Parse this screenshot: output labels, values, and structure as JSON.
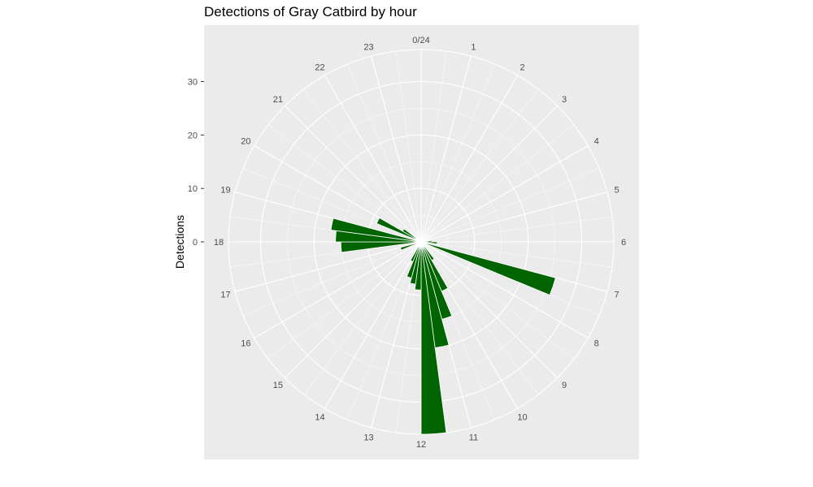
{
  "chart_data": {
    "type": "bar",
    "coord": "polar",
    "title": "Detections of Gray Catbird by hour",
    "xlabel": "",
    "ylabel": "Detections",
    "ylim": [
      0,
      36
    ],
    "y_ticks": [
      0,
      10,
      20,
      30
    ],
    "y_tick_labels": [
      "0",
      "10",
      "20",
      "30"
    ],
    "hour_labels": [
      "0/24",
      "1",
      "2",
      "3",
      "4",
      "5",
      "6",
      "7",
      "8",
      "9",
      "10",
      "11",
      "12",
      "13",
      "14",
      "15",
      "16",
      "17",
      "18",
      "19",
      "20",
      "21",
      "22",
      "23"
    ],
    "categories": [
      0,
      1,
      2,
      3,
      4,
      5,
      6,
      7,
      8,
      9,
      10,
      11,
      12,
      13,
      14,
      15,
      16,
      17,
      18,
      19,
      20,
      21,
      22,
      23
    ],
    "bars": [
      {
        "start": 11.5,
        "end": 12.0,
        "value": 36
      },
      {
        "start": 11.0,
        "end": 11.5,
        "value": 20
      },
      {
        "start": 10.5,
        "end": 11.0,
        "value": 15
      },
      {
        "start": 10.0,
        "end": 10.5,
        "value": 10
      },
      {
        "start": 9.5,
        "end": 10.0,
        "value": 4
      },
      {
        "start": 7.0,
        "end": 7.5,
        "value": 26
      },
      {
        "start": 12.0,
        "end": 12.5,
        "value": 9
      },
      {
        "start": 12.5,
        "end": 13.0,
        "value": 8
      },
      {
        "start": 13.0,
        "end": 13.5,
        "value": 7
      },
      {
        "start": 13.5,
        "end": 14.0,
        "value": 4
      },
      {
        "start": 16.5,
        "end": 17.0,
        "value": 4
      },
      {
        "start": 17.5,
        "end": 18.0,
        "value": 15
      },
      {
        "start": 18.0,
        "end": 18.5,
        "value": 16
      },
      {
        "start": 18.5,
        "end": 19.0,
        "value": 17
      },
      {
        "start": 19.5,
        "end": 20.0,
        "value": 9
      },
      {
        "start": 20.0,
        "end": 20.5,
        "value": 4
      },
      {
        "start": 6.0,
        "end": 6.5,
        "value": 3
      },
      {
        "start": 5.5,
        "end": 6.0,
        "value": 2
      }
    ],
    "colors": {
      "bar": "#006400",
      "panel": "#ebebeb",
      "grid": "#ffffff"
    },
    "grid": true,
    "legend": "none"
  }
}
